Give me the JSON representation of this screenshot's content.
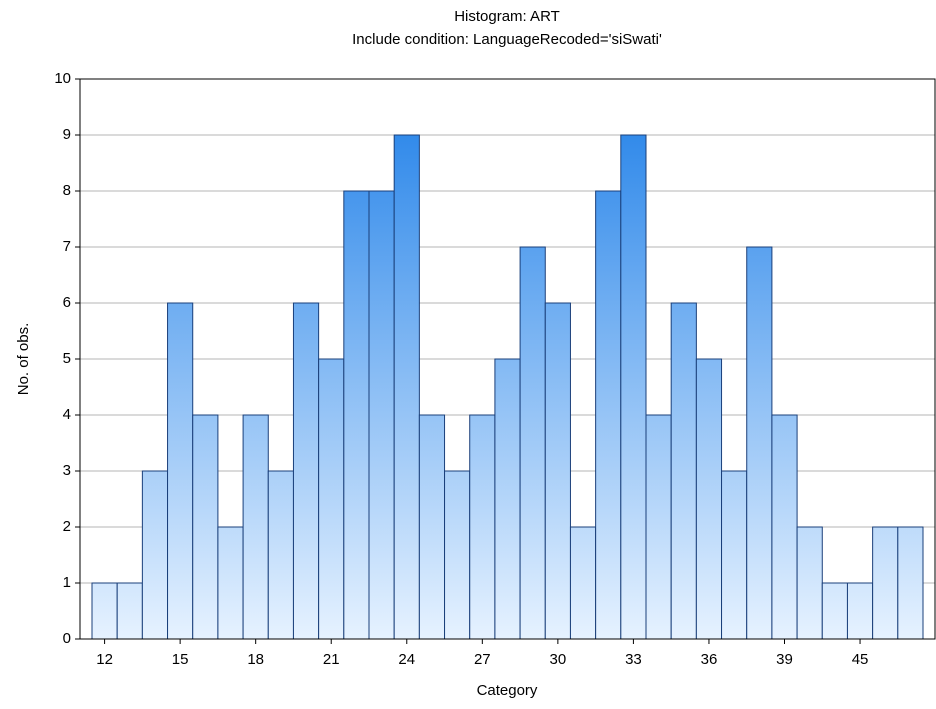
{
  "chart_data": {
    "type": "bar",
    "title": "Histogram: ART",
    "subtitle": "Include condition: LanguageRecoded='siSwati'",
    "x_label": "Category",
    "y_label": "No. of obs.",
    "categories": [
      "12",
      null,
      null,
      "15",
      null,
      null,
      "18",
      null,
      null,
      "21",
      null,
      null,
      "24",
      null,
      null,
      "27",
      null,
      null,
      "30",
      null,
      null,
      "33",
      null,
      null,
      "36",
      null,
      null,
      "39",
      null,
      null,
      "45",
      null,
      null
    ],
    "values": [
      1,
      1,
      3,
      6,
      4,
      2,
      4,
      3,
      6,
      5,
      8,
      8,
      9,
      4,
      3,
      4,
      5,
      7,
      6,
      2,
      8,
      9,
      4,
      6,
      5,
      3,
      7,
      4,
      2,
      1,
      1,
      2,
      2
    ],
    "color": "#1e7fe8",
    "ylim": [
      0,
      10
    ],
    "yticks": [
      0,
      1,
      2,
      3,
      4,
      5,
      6,
      7,
      8,
      9,
      10
    ],
    "grid": true
  }
}
